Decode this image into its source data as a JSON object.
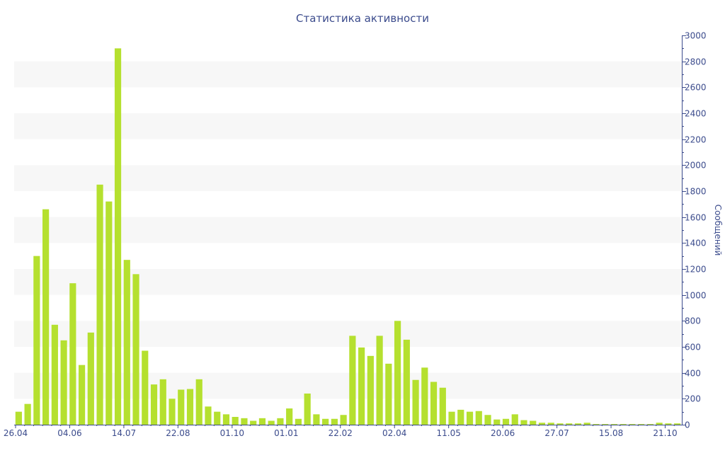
{
  "chart_data": {
    "type": "bar",
    "title": "Статистика активности",
    "ylabel": "Сообщений",
    "xlabel": "",
    "ylim": [
      0,
      3000
    ],
    "yticks": [
      0,
      200,
      400,
      600,
      800,
      1000,
      1200,
      1400,
      1600,
      1800,
      2000,
      2200,
      2400,
      2600,
      2800,
      3000
    ],
    "y_axis_side": "right",
    "grid": "alternating horizontal bands",
    "legend": "none",
    "bar_color": "#b5e02f",
    "band_color": "#f7f7f7",
    "text_color": "#3b4b8c",
    "x_tick_labels": [
      {
        "label": "26.04",
        "index": 0
      },
      {
        "label": "04.06",
        "index": 6
      },
      {
        "label": "14.07",
        "index": 12
      },
      {
        "label": "22.08",
        "index": 18
      },
      {
        "label": "01.10",
        "index": 24
      },
      {
        "label": "01.01",
        "index": 30
      },
      {
        "label": "22.02",
        "index": 36
      },
      {
        "label": "02.04",
        "index": 42
      },
      {
        "label": "11.05",
        "index": 48
      },
      {
        "label": "20.06",
        "index": 54
      },
      {
        "label": "27.07",
        "index": 60
      },
      {
        "label": "15.08",
        "index": 66
      },
      {
        "label": "21.10",
        "index": 72
      }
    ],
    "values": [
      100,
      160,
      1300,
      1660,
      770,
      650,
      1090,
      460,
      710,
      1850,
      1720,
      2900,
      1270,
      1160,
      570,
      310,
      350,
      200,
      270,
      275,
      350,
      140,
      100,
      80,
      60,
      50,
      30,
      50,
      30,
      50,
      125,
      45,
      240,
      80,
      45,
      45,
      75,
      685,
      595,
      530,
      685,
      470,
      800,
      655,
      345,
      440,
      330,
      285,
      100,
      115,
      100,
      105,
      75,
      40,
      45,
      80,
      35,
      30,
      15,
      15,
      10,
      10,
      10,
      15,
      5,
      5,
      5,
      5,
      5,
      5,
      5,
      15,
      10,
      10
    ]
  }
}
